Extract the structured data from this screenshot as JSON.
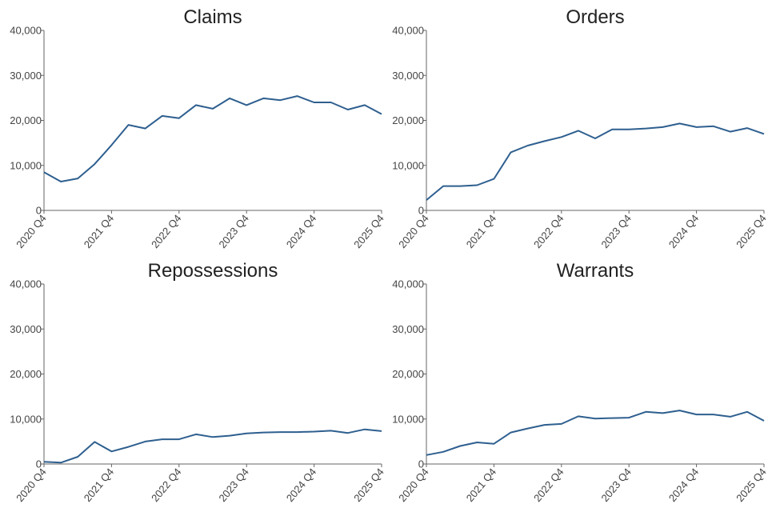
{
  "colors": {
    "line": "#2e5f8f"
  },
  "chart_data": [
    {
      "type": "line",
      "title": "Claims",
      "ylim": [
        0,
        40000
      ],
      "yticks": [
        "0",
        "10,000",
        "20,000",
        "30,000",
        "40,000"
      ],
      "xticks": [
        "2020 Q4",
        "2021 Q4",
        "2022 Q4",
        "2023 Q4",
        "2024 Q4",
        "2025 Q4"
      ],
      "x": [
        "2020 Q4",
        "2021 Q1",
        "2021 Q2",
        "2021 Q3",
        "2021 Q4",
        "2022 Q1",
        "2022 Q2",
        "2022 Q3",
        "2022 Q4",
        "2023 Q1",
        "2023 Q2",
        "2023 Q3",
        "2023 Q4",
        "2024 Q1",
        "2024 Q2",
        "2024 Q3",
        "2024 Q4",
        "2025 Q1",
        "2025 Q2",
        "2025 Q3",
        "2025 Q4"
      ],
      "values": [
        8500,
        6400,
        7100,
        10300,
        14500,
        19000,
        18200,
        21000,
        20500,
        23400,
        22600,
        24900,
        23400,
        24900,
        24500,
        25400,
        24000,
        24000,
        22400,
        23400,
        21400
      ]
    },
    {
      "type": "line",
      "title": "Orders",
      "ylim": [
        0,
        40000
      ],
      "yticks": [
        "0",
        "10,000",
        "20,000",
        "30,000",
        "40,000"
      ],
      "xticks": [
        "2020 Q4",
        "2021 Q4",
        "2022 Q4",
        "2023 Q4",
        "2024 Q4",
        "2025 Q4"
      ],
      "x": [
        "2020 Q4",
        "2021 Q1",
        "2021 Q2",
        "2021 Q3",
        "2021 Q4",
        "2022 Q1",
        "2022 Q2",
        "2022 Q3",
        "2022 Q4",
        "2023 Q1",
        "2023 Q2",
        "2023 Q3",
        "2023 Q4",
        "2024 Q1",
        "2024 Q2",
        "2024 Q3",
        "2024 Q4",
        "2025 Q1",
        "2025 Q2",
        "2025 Q3",
        "2025 Q4"
      ],
      "values": [
        2300,
        5400,
        5400,
        5600,
        7000,
        12900,
        14400,
        15400,
        16300,
        17700,
        16000,
        18000,
        18000,
        18200,
        18500,
        19300,
        18500,
        18700,
        17500,
        18300,
        17000
      ]
    },
    {
      "type": "line",
      "title": "Repossessions",
      "ylim": [
        0,
        40000
      ],
      "yticks": [
        "0",
        "10,000",
        "20,000",
        "30,000",
        "40,000"
      ],
      "xticks": [
        "2020 Q4",
        "2021 Q4",
        "2022 Q4",
        "2023 Q4",
        "2024 Q4",
        "2025 Q4"
      ],
      "x": [
        "2020 Q4",
        "2021 Q1",
        "2021 Q2",
        "2021 Q3",
        "2021 Q4",
        "2022 Q1",
        "2022 Q2",
        "2022 Q3",
        "2022 Q4",
        "2023 Q1",
        "2023 Q2",
        "2023 Q3",
        "2023 Q4",
        "2024 Q1",
        "2024 Q2",
        "2024 Q3",
        "2024 Q4",
        "2025 Q1",
        "2025 Q2",
        "2025 Q3",
        "2025 Q4"
      ],
      "values": [
        500,
        300,
        1600,
        4900,
        2800,
        3800,
        5000,
        5500,
        5500,
        6600,
        6000,
        6300,
        6800,
        7000,
        7100,
        7100,
        7200,
        7400,
        6900,
        7700,
        7300
      ]
    },
    {
      "type": "line",
      "title": "Warrants",
      "ylim": [
        0,
        40000
      ],
      "yticks": [
        "0",
        "10,000",
        "20,000",
        "30,000",
        "40,000"
      ],
      "xticks": [
        "2020 Q4",
        "2021 Q4",
        "2022 Q4",
        "2023 Q4",
        "2024 Q4",
        "2025 Q4"
      ],
      "x": [
        "2020 Q4",
        "2021 Q1",
        "2021 Q2",
        "2021 Q3",
        "2021 Q4",
        "2022 Q1",
        "2022 Q2",
        "2022 Q3",
        "2022 Q4",
        "2023 Q1",
        "2023 Q2",
        "2023 Q3",
        "2023 Q4",
        "2024 Q1",
        "2024 Q2",
        "2024 Q3",
        "2024 Q4",
        "2025 Q1",
        "2025 Q2",
        "2025 Q3",
        "2025 Q4"
      ],
      "values": [
        2000,
        2700,
        4000,
        4800,
        4500,
        7000,
        7900,
        8700,
        8900,
        10600,
        10100,
        10200,
        10300,
        11600,
        11300,
        11900,
        11000,
        11000,
        10500,
        11600,
        9600
      ]
    }
  ]
}
